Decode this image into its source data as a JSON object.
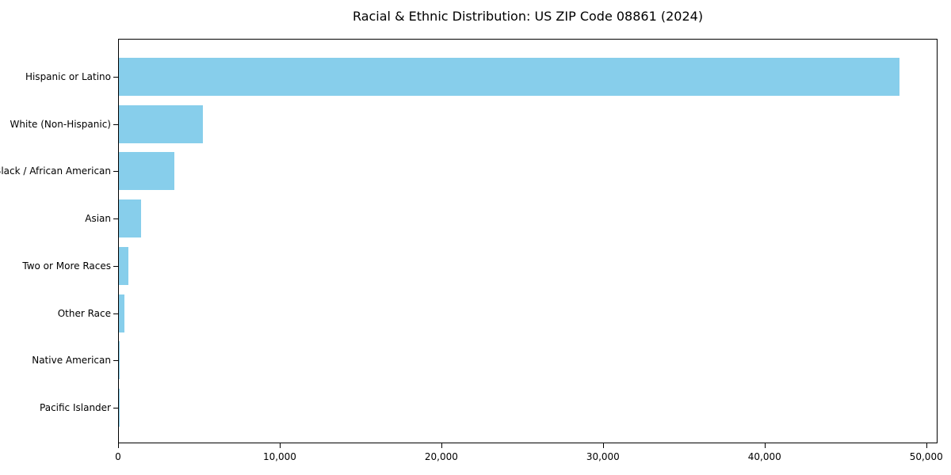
{
  "figure": {
    "background_color": "#ffffff",
    "axis_color": "#000000",
    "text_color": "#000000"
  },
  "chart_data": {
    "type": "bar",
    "orientation": "horizontal",
    "title": "Racial & Ethnic Distribution: US ZIP Code 08861 (2024)",
    "xlabel": "",
    "ylabel": "",
    "categories": [
      "Hispanic or Latino",
      "White (Non-Hispanic)",
      "Black / African American",
      "Asian",
      "Two or More Races",
      "Other Race",
      "Native American",
      "Pacific Islander"
    ],
    "values": [
      48300,
      5200,
      3450,
      1360,
      580,
      350,
      40,
      15
    ],
    "bar_color": "#87CEEB",
    "xlim": [
      0,
      50700
    ],
    "x_ticks": [
      0,
      10000,
      20000,
      30000,
      40000,
      50000
    ],
    "x_tick_labels": [
      "0",
      "10,000",
      "20,000",
      "30,000",
      "40,000",
      "50,000"
    ],
    "grid": false,
    "legend": null
  }
}
